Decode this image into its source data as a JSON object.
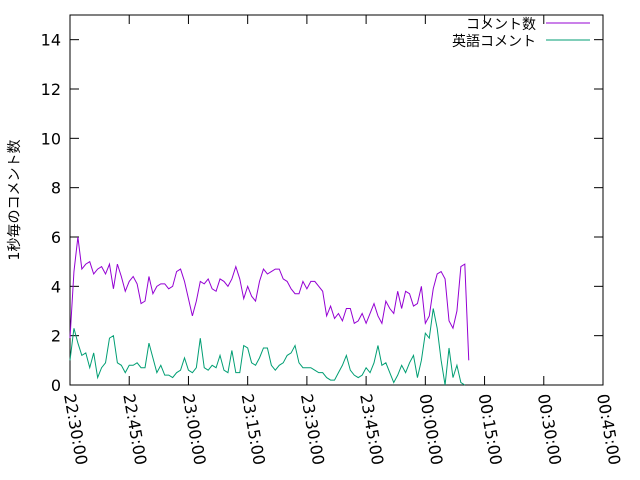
{
  "chart_data": {
    "type": "line",
    "title": "",
    "xlabel": "",
    "ylabel": "1秒毎のコメント数",
    "ylim": [
      0,
      15
    ],
    "xlim": [
      "22:30:00",
      "00:45:00"
    ],
    "grid": false,
    "legend_position": "top-right",
    "y_ticks": [
      0,
      2,
      4,
      6,
      8,
      10,
      12,
      14
    ],
    "x_ticks": [
      "22:30:00",
      "22:45:00",
      "23:00:00",
      "23:15:00",
      "23:30:00",
      "23:45:00",
      "00:00:00",
      "00:15:00",
      "00:30:00",
      "00:45:00"
    ],
    "series": [
      {
        "name": "コメント数",
        "color": "#9400d3",
        "points": [
          [
            "22:30:00",
            1.9
          ],
          [
            "22:31:00",
            4.6
          ],
          [
            "22:32:00",
            6.0
          ],
          [
            "22:33:00",
            4.7
          ],
          [
            "22:34:00",
            4.9
          ],
          [
            "22:35:00",
            5.0
          ],
          [
            "22:36:00",
            4.5
          ],
          [
            "22:37:00",
            4.7
          ],
          [
            "22:38:00",
            4.8
          ],
          [
            "22:39:00",
            4.5
          ],
          [
            "22:40:00",
            4.9
          ],
          [
            "22:41:00",
            3.9
          ],
          [
            "22:42:00",
            4.9
          ],
          [
            "22:43:00",
            4.4
          ],
          [
            "22:44:00",
            3.8
          ],
          [
            "22:45:00",
            4.2
          ],
          [
            "22:46:00",
            4.4
          ],
          [
            "22:47:00",
            4.1
          ],
          [
            "22:48:00",
            3.3
          ],
          [
            "22:49:00",
            3.4
          ],
          [
            "22:50:00",
            4.4
          ],
          [
            "22:51:00",
            3.7
          ],
          [
            "22:52:00",
            4.0
          ],
          [
            "22:53:00",
            4.1
          ],
          [
            "22:54:00",
            4.1
          ],
          [
            "22:55:00",
            3.9
          ],
          [
            "22:56:00",
            4.0
          ],
          [
            "22:57:00",
            4.6
          ],
          [
            "22:58:00",
            4.7
          ],
          [
            "22:59:00",
            4.2
          ],
          [
            "23:00:00",
            3.5
          ],
          [
            "23:01:00",
            2.8
          ],
          [
            "23:02:00",
            3.4
          ],
          [
            "23:03:00",
            4.2
          ],
          [
            "23:04:00",
            4.1
          ],
          [
            "23:05:00",
            4.3
          ],
          [
            "23:06:00",
            3.9
          ],
          [
            "23:07:00",
            3.8
          ],
          [
            "23:08:00",
            4.3
          ],
          [
            "23:09:00",
            4.2
          ],
          [
            "23:10:00",
            4.0
          ],
          [
            "23:11:00",
            4.3
          ],
          [
            "23:12:00",
            4.8
          ],
          [
            "23:13:00",
            4.3
          ],
          [
            "23:14:00",
            3.5
          ],
          [
            "23:15:00",
            4.0
          ],
          [
            "23:16:00",
            3.6
          ],
          [
            "23:17:00",
            3.4
          ],
          [
            "23:18:00",
            4.2
          ],
          [
            "23:19:00",
            4.7
          ],
          [
            "23:20:00",
            4.5
          ],
          [
            "23:21:00",
            4.6
          ],
          [
            "23:22:00",
            4.7
          ],
          [
            "23:23:00",
            4.7
          ],
          [
            "23:24:00",
            4.3
          ],
          [
            "23:25:00",
            4.2
          ],
          [
            "23:26:00",
            3.9
          ],
          [
            "23:27:00",
            3.7
          ],
          [
            "23:28:00",
            3.7
          ],
          [
            "23:29:00",
            4.2
          ],
          [
            "23:30:00",
            3.9
          ],
          [
            "23:31:00",
            4.2
          ],
          [
            "23:32:00",
            4.2
          ],
          [
            "23:33:00",
            4.0
          ],
          [
            "23:34:00",
            3.8
          ],
          [
            "23:35:00",
            2.8
          ],
          [
            "23:36:00",
            3.2
          ],
          [
            "23:37:00",
            2.7
          ],
          [
            "23:38:00",
            2.9
          ],
          [
            "23:39:00",
            2.6
          ],
          [
            "23:40:00",
            3.1
          ],
          [
            "23:41:00",
            3.1
          ],
          [
            "23:42:00",
            2.5
          ],
          [
            "23:43:00",
            2.6
          ],
          [
            "23:44:00",
            2.9
          ],
          [
            "23:45:00",
            2.5
          ],
          [
            "23:46:00",
            2.9
          ],
          [
            "23:47:00",
            3.3
          ],
          [
            "23:48:00",
            2.8
          ],
          [
            "23:49:00",
            2.5
          ],
          [
            "23:50:00",
            3.4
          ],
          [
            "23:51:00",
            3.1
          ],
          [
            "23:52:00",
            2.9
          ],
          [
            "23:53:00",
            3.8
          ],
          [
            "23:54:00",
            3.1
          ],
          [
            "23:55:00",
            3.8
          ],
          [
            "23:56:00",
            3.7
          ],
          [
            "23:57:00",
            3.2
          ],
          [
            "23:58:00",
            3.3
          ],
          [
            "23:59:00",
            4.0
          ],
          [
            "00:00:00",
            2.5
          ],
          [
            "00:01:00",
            2.8
          ],
          [
            "00:02:00",
            3.9
          ],
          [
            "00:03:00",
            4.5
          ],
          [
            "00:04:00",
            4.6
          ],
          [
            "00:05:00",
            4.3
          ],
          [
            "00:06:00",
            2.6
          ],
          [
            "00:07:00",
            2.3
          ],
          [
            "00:08:00",
            3.0
          ],
          [
            "00:09:00",
            4.8
          ],
          [
            "00:10:00",
            4.9
          ],
          [
            "00:11:00",
            1.0
          ]
        ]
      },
      {
        "name": "英語コメント",
        "color": "#009e73",
        "points": [
          [
            "22:30:00",
            1.0
          ],
          [
            "22:31:00",
            2.3
          ],
          [
            "22:32:00",
            1.7
          ],
          [
            "22:33:00",
            1.2
          ],
          [
            "22:34:00",
            1.3
          ],
          [
            "22:35:00",
            0.7
          ],
          [
            "22:36:00",
            1.3
          ],
          [
            "22:37:00",
            0.3
          ],
          [
            "22:38:00",
            0.7
          ],
          [
            "22:39:00",
            0.9
          ],
          [
            "22:40:00",
            1.9
          ],
          [
            "22:41:00",
            2.0
          ],
          [
            "22:42:00",
            0.9
          ],
          [
            "22:43:00",
            0.8
          ],
          [
            "22:44:00",
            0.5
          ],
          [
            "22:45:00",
            0.8
          ],
          [
            "22:46:00",
            0.8
          ],
          [
            "22:47:00",
            0.9
          ],
          [
            "22:48:00",
            0.7
          ],
          [
            "22:49:00",
            0.7
          ],
          [
            "22:50:00",
            1.7
          ],
          [
            "22:51:00",
            1.1
          ],
          [
            "22:52:00",
            0.5
          ],
          [
            "22:53:00",
            0.8
          ],
          [
            "22:54:00",
            0.4
          ],
          [
            "22:55:00",
            0.4
          ],
          [
            "22:56:00",
            0.3
          ],
          [
            "22:57:00",
            0.5
          ],
          [
            "22:58:00",
            0.6
          ],
          [
            "22:59:00",
            1.1
          ],
          [
            "23:00:00",
            0.6
          ],
          [
            "23:01:00",
            0.5
          ],
          [
            "23:02:00",
            0.7
          ],
          [
            "23:03:00",
            1.9
          ],
          [
            "23:04:00",
            0.7
          ],
          [
            "23:05:00",
            0.6
          ],
          [
            "23:06:00",
            0.8
          ],
          [
            "23:07:00",
            0.7
          ],
          [
            "23:08:00",
            1.2
          ],
          [
            "23:09:00",
            0.6
          ],
          [
            "23:10:00",
            0.5
          ],
          [
            "23:11:00",
            1.4
          ],
          [
            "23:12:00",
            0.5
          ],
          [
            "23:13:00",
            0.5
          ],
          [
            "23:14:00",
            1.6
          ],
          [
            "23:15:00",
            1.5
          ],
          [
            "23:16:00",
            0.9
          ],
          [
            "23:17:00",
            0.8
          ],
          [
            "23:18:00",
            1.1
          ],
          [
            "23:19:00",
            1.5
          ],
          [
            "23:20:00",
            1.5
          ],
          [
            "23:21:00",
            0.8
          ],
          [
            "23:22:00",
            0.6
          ],
          [
            "23:23:00",
            0.8
          ],
          [
            "23:24:00",
            0.9
          ],
          [
            "23:25:00",
            1.2
          ],
          [
            "23:26:00",
            1.3
          ],
          [
            "23:27:00",
            1.6
          ],
          [
            "23:28:00",
            0.9
          ],
          [
            "23:29:00",
            0.7
          ],
          [
            "23:30:00",
            0.7
          ],
          [
            "23:31:00",
            0.7
          ],
          [
            "23:32:00",
            0.6
          ],
          [
            "23:33:00",
            0.5
          ],
          [
            "23:34:00",
            0.5
          ],
          [
            "23:35:00",
            0.3
          ],
          [
            "23:36:00",
            0.2
          ],
          [
            "23:37:00",
            0.2
          ],
          [
            "23:38:00",
            0.5
          ],
          [
            "23:39:00",
            0.8
          ],
          [
            "23:40:00",
            1.2
          ],
          [
            "23:41:00",
            0.6
          ],
          [
            "23:42:00",
            0.4
          ],
          [
            "23:43:00",
            0.3
          ],
          [
            "23:44:00",
            0.4
          ],
          [
            "23:45:00",
            0.7
          ],
          [
            "23:46:00",
            0.5
          ],
          [
            "23:47:00",
            0.9
          ],
          [
            "23:48:00",
            1.6
          ],
          [
            "23:49:00",
            0.8
          ],
          [
            "23:50:00",
            0.9
          ],
          [
            "23:51:00",
            0.5
          ],
          [
            "23:52:00",
            0.1
          ],
          [
            "23:53:00",
            0.4
          ],
          [
            "23:54:00",
            0.8
          ],
          [
            "23:55:00",
            0.5
          ],
          [
            "23:56:00",
            0.9
          ],
          [
            "23:57:00",
            1.2
          ],
          [
            "23:58:00",
            0.3
          ],
          [
            "23:59:00",
            1.0
          ],
          [
            "00:00:00",
            2.1
          ],
          [
            "00:01:00",
            1.9
          ],
          [
            "00:02:00",
            3.1
          ],
          [
            "00:03:00",
            2.3
          ],
          [
            "00:04:00",
            1.0
          ],
          [
            "00:05:00",
            0.0
          ],
          [
            "00:06:00",
            1.5
          ],
          [
            "00:07:00",
            0.3
          ],
          [
            "00:08:00",
            0.8
          ],
          [
            "00:09:00",
            0.1
          ],
          [
            "00:10:00",
            0.0
          ]
        ]
      }
    ]
  }
}
